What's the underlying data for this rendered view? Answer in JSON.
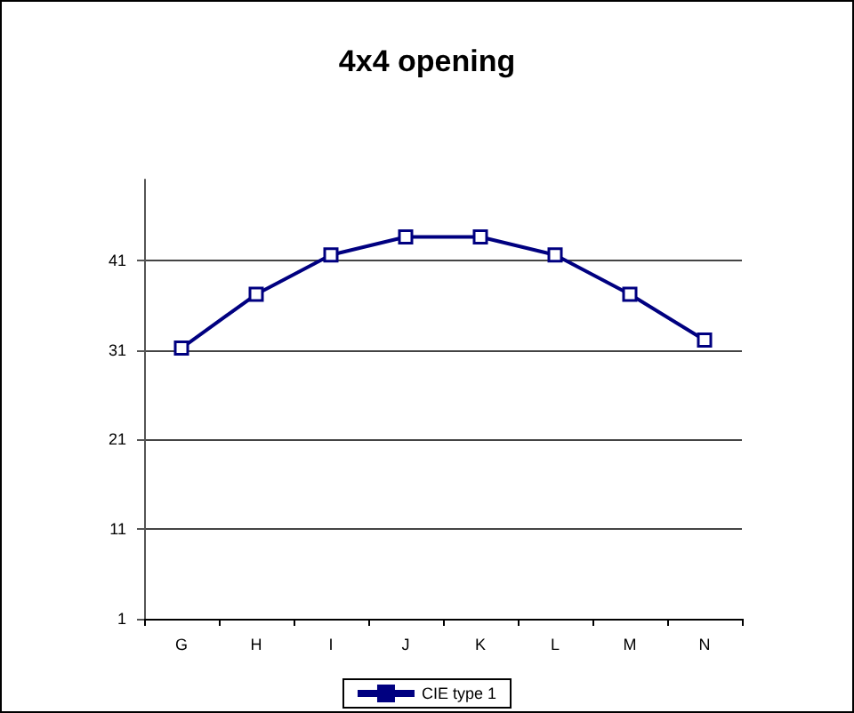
{
  "chart_data": {
    "type": "line",
    "title": "4x4 opening",
    "categories": [
      "G",
      "H",
      "I",
      "J",
      "K",
      "L",
      "M",
      "N"
    ],
    "series": [
      {
        "name": "CIE type 1",
        "color": "#000080",
        "values": [
          31.2,
          37.2,
          41.6,
          43.6,
          43.6,
          41.6,
          37.2,
          32.1
        ]
      }
    ],
    "ylim": [
      1,
      50
    ],
    "yticks": [
      1,
      11,
      21,
      31,
      41
    ],
    "grid": "y",
    "legend": "bottom",
    "marker": "square",
    "line_style": "solid"
  }
}
